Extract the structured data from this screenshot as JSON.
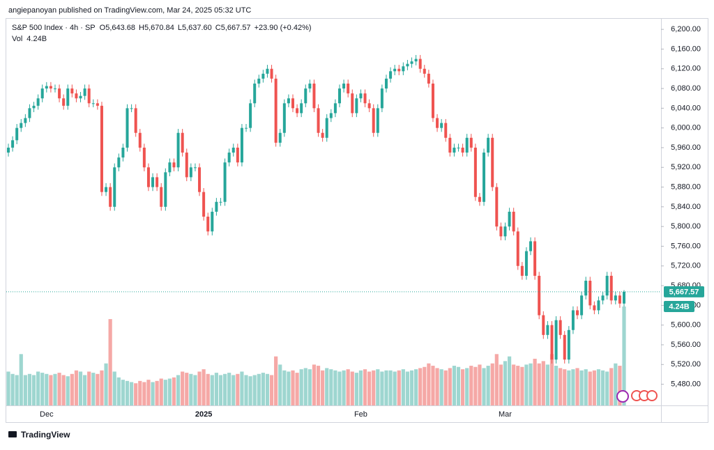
{
  "header": {
    "publisher": "angiepanoyan published on TradingView.com, Mar 24, 2025 05:32 UTC"
  },
  "chart_data": {
    "type": "candlestick",
    "title": "S&P 500 Index · 4h · SP",
    "legend": {
      "ohlc": [
        {
          "prefix": "O",
          "label": "5,643.68"
        },
        {
          "prefix": "H",
          "label": "5,670.84"
        },
        {
          "prefix": "L",
          "label": "5,637.60"
        },
        {
          "prefix": "C",
          "label": "5,667.57"
        }
      ],
      "change": "+23.90 (+0.42%)",
      "volume_prefix": "Vol",
      "volume": "4.24B"
    },
    "categories": [
      null,
      null,
      null,
      null,
      null,
      null,
      null,
      null,
      null,
      "Dec",
      null,
      null,
      null,
      null,
      null,
      null,
      null,
      null,
      null,
      null,
      null,
      null,
      null,
      null,
      null,
      null,
      null,
      null,
      null,
      null,
      null,
      null,
      null,
      null,
      null,
      null,
      null,
      null,
      null,
      null,
      null,
      null,
      null,
      null,
      null,
      null,
      "2025",
      null,
      null,
      null,
      null,
      null,
      null,
      null,
      null,
      null,
      null,
      null,
      null,
      null,
      null,
      null,
      null,
      null,
      null,
      null,
      null,
      null,
      null,
      null,
      null,
      null,
      null,
      null,
      null,
      null,
      null,
      null,
      null,
      null,
      null,
      null,
      null,
      "Feb",
      null,
      null,
      null,
      null,
      null,
      null,
      null,
      null,
      null,
      null,
      null,
      null,
      null,
      null,
      null,
      null,
      null,
      null,
      null,
      null,
      null,
      null,
      null,
      null,
      null,
      null,
      null,
      null,
      null,
      null,
      null,
      null,
      null,
      "Mar",
      null,
      null,
      null,
      null,
      null,
      null,
      null,
      null,
      null,
      null,
      null,
      null,
      null,
      null,
      null,
      null,
      null,
      null,
      null,
      null,
      null,
      null,
      null,
      null,
      null,
      null,
      null,
      null
    ],
    "open": [
      5950,
      5960,
      5975,
      6000,
      6010,
      6020,
      6040,
      6045,
      6060,
      6080,
      6085,
      6080,
      6080,
      6060,
      6045,
      6080,
      6070,
      6060,
      6065,
      6080,
      6050,
      6050,
      6045,
      5870,
      5880,
      5840,
      5920,
      5940,
      5960,
      6040,
      6040,
      5990,
      5960,
      5920,
      5880,
      5900,
      5880,
      5840,
      5910,
      5930,
      5920,
      5990,
      5950,
      5900,
      5920,
      5920,
      5870,
      5820,
      5790,
      5830,
      5850,
      5850,
      5930,
      5950,
      5960,
      5930,
      6000,
      6000,
      6050,
      6090,
      6100,
      6110,
      6120,
      6100,
      5970,
      5990,
      6050,
      6060,
      6040,
      6030,
      6050,
      6080,
      6090,
      6040,
      5990,
      5980,
      6020,
      6030,
      6050,
      6080,
      6090,
      6070,
      6030,
      6060,
      6070,
      6050,
      6040,
      5990,
      6040,
      6080,
      6100,
      6115,
      6120,
      6115,
      6125,
      6130,
      6135,
      6140,
      6120,
      6110,
      6090,
      6020,
      6000,
      6010,
      5980,
      5950,
      5960,
      5960,
      5950,
      5980,
      5960,
      5860,
      5850,
      5950,
      5980,
      5880,
      5800,
      5780,
      5800,
      5830,
      5790,
      5720,
      5700,
      5750,
      5770,
      5700,
      5620,
      5580,
      5600,
      5530,
      5610,
      5580,
      5530,
      5590,
      5630,
      5620,
      5660,
      5690,
      5640,
      5630,
      5650,
      5660,
      5700,
      5650,
      5660,
      5643.68
    ],
    "high": [
      5968,
      5983,
      6008,
      6018,
      6028,
      6048,
      6053,
      6068,
      6088,
      6093,
      6093,
      6088,
      6088,
      6068,
      6088,
      6088,
      6078,
      6073,
      6088,
      6088,
      6058,
      6058,
      6053,
      5888,
      5888,
      5928,
      5948,
      5968,
      6048,
      6048,
      6048,
      5998,
      5968,
      5928,
      5908,
      5908,
      5888,
      5918,
      5938,
      5938,
      5998,
      5998,
      5958,
      5928,
      5928,
      5928,
      5878,
      5828,
      5838,
      5858,
      5858,
      5938,
      5958,
      5968,
      5968,
      6008,
      6008,
      6058,
      6098,
      6108,
      6118,
      6128,
      6128,
      6108,
      5998,
      6058,
      6068,
      6068,
      6048,
      6058,
      6088,
      6098,
      6098,
      6048,
      5998,
      6028,
      6038,
      6058,
      6088,
      6098,
      6098,
      6078,
      6068,
      6078,
      6078,
      6058,
      6048,
      6048,
      6088,
      6108,
      6123,
      6128,
      6128,
      6133,
      6138,
      6143,
      6148,
      6148,
      6128,
      6118,
      6098,
      6028,
      6018,
      6018,
      5988,
      5968,
      5968,
      5968,
      5988,
      5988,
      5968,
      5868,
      5958,
      5988,
      5988,
      5888,
      5808,
      5808,
      5838,
      5838,
      5798,
      5728,
      5758,
      5778,
      5778,
      5708,
      5628,
      5608,
      5608,
      5618,
      5618,
      5588,
      5598,
      5638,
      5638,
      5668,
      5698,
      5698,
      5648,
      5658,
      5668,
      5708,
      5708,
      5668,
      5668,
      5670.84
    ],
    "low": [
      5942,
      5952,
      5967,
      5992,
      6002,
      6012,
      6032,
      6037,
      6052,
      6072,
      6072,
      6072,
      6052,
      6037,
      6037,
      6062,
      6052,
      6052,
      6057,
      6042,
      6042,
      6037,
      5862,
      5862,
      5832,
      5832,
      5912,
      5932,
      5952,
      6032,
      5982,
      5952,
      5912,
      5872,
      5872,
      5872,
      5832,
      5832,
      5902,
      5912,
      5912,
      5942,
      5892,
      5892,
      5912,
      5862,
      5812,
      5782,
      5782,
      5822,
      5842,
      5842,
      5922,
      5942,
      5922,
      5922,
      5992,
      5992,
      6042,
      6082,
      6092,
      6102,
      6092,
      5962,
      5962,
      5982,
      6042,
      6032,
      6022,
      6022,
      6042,
      6072,
      6032,
      5982,
      5972,
      5972,
      6012,
      6022,
      6042,
      6072,
      6062,
      6022,
      6022,
      6052,
      6042,
      6032,
      5982,
      5982,
      6032,
      6072,
      6092,
      6107,
      6107,
      6107,
      6117,
      6122,
      6127,
      6112,
      6102,
      6082,
      6012,
      5992,
      5992,
      5972,
      5942,
      5942,
      5952,
      5942,
      5942,
      5952,
      5852,
      5842,
      5842,
      5942,
      5872,
      5792,
      5772,
      5772,
      5792,
      5782,
      5712,
      5692,
      5692,
      5742,
      5692,
      5612,
      5572,
      5572,
      5522,
      5522,
      5572,
      5522,
      5522,
      5582,
      5612,
      5612,
      5652,
      5632,
      5622,
      5622,
      5642,
      5652,
      5642,
      5642,
      5635,
      5637.6
    ],
    "close": [
      5960,
      5975,
      6000,
      6010,
      6020,
      6040,
      6045,
      6060,
      6080,
      6085,
      6080,
      6080,
      6060,
      6045,
      6080,
      6070,
      6060,
      6065,
      6080,
      6050,
      6050,
      6045,
      5870,
      5880,
      5840,
      5920,
      5940,
      5960,
      6040,
      6040,
      5990,
      5960,
      5920,
      5880,
      5900,
      5880,
      5840,
      5910,
      5930,
      5920,
      5990,
      5950,
      5900,
      5920,
      5920,
      5870,
      5820,
      5790,
      5830,
      5850,
      5850,
      5930,
      5950,
      5960,
      5930,
      6000,
      6000,
      6050,
      6090,
      6100,
      6110,
      6120,
      6100,
      5970,
      5990,
      6050,
      6060,
      6040,
      6030,
      6050,
      6080,
      6090,
      6040,
      5990,
      5980,
      6020,
      6030,
      6050,
      6080,
      6090,
      6070,
      6030,
      6060,
      6070,
      6050,
      6040,
      5990,
      6040,
      6080,
      6100,
      6115,
      6120,
      6115,
      6125,
      6130,
      6135,
      6140,
      6120,
      6110,
      6090,
      6020,
      6000,
      6010,
      5980,
      5950,
      5960,
      5960,
      5950,
      5980,
      5960,
      5860,
      5850,
      5950,
      5980,
      5880,
      5800,
      5780,
      5800,
      5830,
      5790,
      5720,
      5700,
      5750,
      5770,
      5700,
      5620,
      5580,
      5600,
      5530,
      5610,
      5580,
      5530,
      5590,
      5630,
      5620,
      5660,
      5690,
      5640,
      5630,
      5650,
      5660,
      5700,
      5650,
      5660,
      5643.68,
      5667.57
    ],
    "volume": [
      1.45,
      1.35,
      1.3,
      2.2,
      1.3,
      1.35,
      1.3,
      1.45,
      1.4,
      1.35,
      1.3,
      1.35,
      1.4,
      1.3,
      1.25,
      1.35,
      1.5,
      1.45,
      1.3,
      1.45,
      1.4,
      1.35,
      1.5,
      1.8,
      3.7,
      1.45,
      1.2,
      1.1,
      1.05,
      1.0,
      0.95,
      1.05,
      1.0,
      1.1,
      1.0,
      1.05,
      1.15,
      1.1,
      1.15,
      1.2,
      1.3,
      1.45,
      1.4,
      1.35,
      1.3,
      1.45,
      1.55,
      1.35,
      1.3,
      1.4,
      1.3,
      1.35,
      1.4,
      1.3,
      1.35,
      1.45,
      1.3,
      1.25,
      1.3,
      1.35,
      1.4,
      1.35,
      1.3,
      2.1,
      1.75,
      1.5,
      1.45,
      1.5,
      1.4,
      1.55,
      1.6,
      1.55,
      1.75,
      1.7,
      1.5,
      1.6,
      1.55,
      1.5,
      1.45,
      1.5,
      1.55,
      1.45,
      1.4,
      1.5,
      1.55,
      1.45,
      1.5,
      1.55,
      1.45,
      1.5,
      1.5,
      1.45,
      1.5,
      1.55,
      1.45,
      1.5,
      1.55,
      1.6,
      1.65,
      1.8,
      1.7,
      1.6,
      1.55,
      1.5,
      1.6,
      1.7,
      1.65,
      1.55,
      1.6,
      1.7,
      1.65,
      1.75,
      1.6,
      1.7,
      1.8,
      2.2,
      1.75,
      1.9,
      2.1,
      1.75,
      1.7,
      1.65,
      1.75,
      1.8,
      2.0,
      1.8,
      1.9,
      1.75,
      2.2,
      1.7,
      1.6,
      1.55,
      1.5,
      1.55,
      1.6,
      1.5,
      1.55,
      1.45,
      1.5,
      1.55,
      1.5,
      1.45,
      1.6,
      1.8,
      1.7,
      4.24
    ],
    "colors": {
      "up": "#26a69a",
      "down": "#ef5350",
      "up_volume": "#9ed6d0",
      "down_volume": "#f5a8a6"
    },
    "ylim": [
      5437,
      6220
    ],
    "yticks": [
      {
        "value": 5480,
        "label": "5,480.00"
      },
      {
        "value": 5520,
        "label": "5,520.00"
      },
      {
        "value": 5560,
        "label": "5,560.00"
      },
      {
        "value": 5600,
        "label": "5,600.00"
      },
      {
        "value": 5640,
        "label": "5,640.00"
      },
      {
        "value": 5680,
        "label": "5,680.00"
      },
      {
        "value": 5720,
        "label": "5,720.00"
      },
      {
        "value": 5760,
        "label": "5,760.00"
      },
      {
        "value": 5800,
        "label": "5,800.00"
      },
      {
        "value": 5840,
        "label": "5,840.00"
      },
      {
        "value": 5880,
        "label": "5,880.00"
      },
      {
        "value": 5920,
        "label": "5,920.00"
      },
      {
        "value": 5960,
        "label": "5,960.00"
      },
      {
        "value": 6000,
        "label": "6,000.00"
      },
      {
        "value": 6040,
        "label": "6,040.00"
      },
      {
        "value": 6080,
        "label": "6,080.00"
      },
      {
        "value": 6120,
        "label": "6,120.00"
      },
      {
        "value": 6160,
        "label": "6,160.00"
      },
      {
        "value": 6200,
        "label": "6,200.00"
      }
    ],
    "last_price": {
      "value": 5667.57,
      "label": "5,667.57"
    },
    "last_volume_label": "4.24B"
  },
  "footer": {
    "brand": "TradingView"
  }
}
